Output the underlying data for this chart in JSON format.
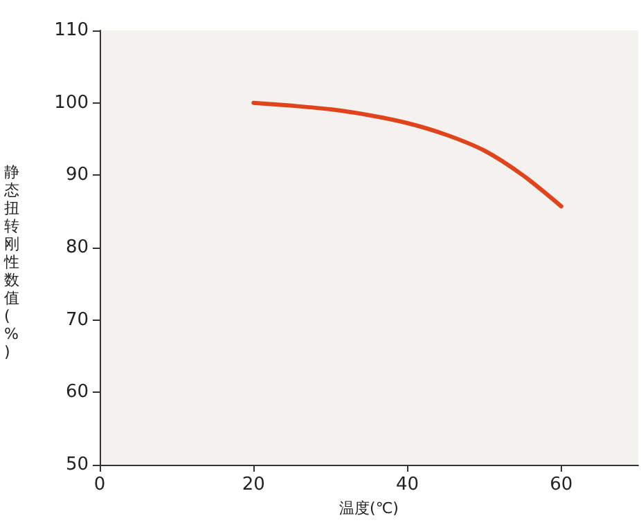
{
  "chart_data": {
    "type": "line",
    "xlabel": "温度(℃)",
    "ylabel": "静态扭转刚性数值(%)",
    "x": [
      20,
      25,
      30,
      35,
      40,
      45,
      50,
      55,
      60
    ],
    "series": [
      {
        "color": "#e0441c",
        "values": [
          100,
          99.6,
          99.1,
          98.3,
          97.2,
          95.6,
          93.4,
          90,
          85.7
        ]
      }
    ],
    "xlim": [
      0,
      70
    ],
    "xticks": [
      0,
      20,
      40,
      60
    ],
    "ylim": [
      50,
      110
    ],
    "yticks": [
      50,
      60,
      70,
      80,
      90,
      100,
      110
    ],
    "marker": "none",
    "line_style": "solid"
  }
}
